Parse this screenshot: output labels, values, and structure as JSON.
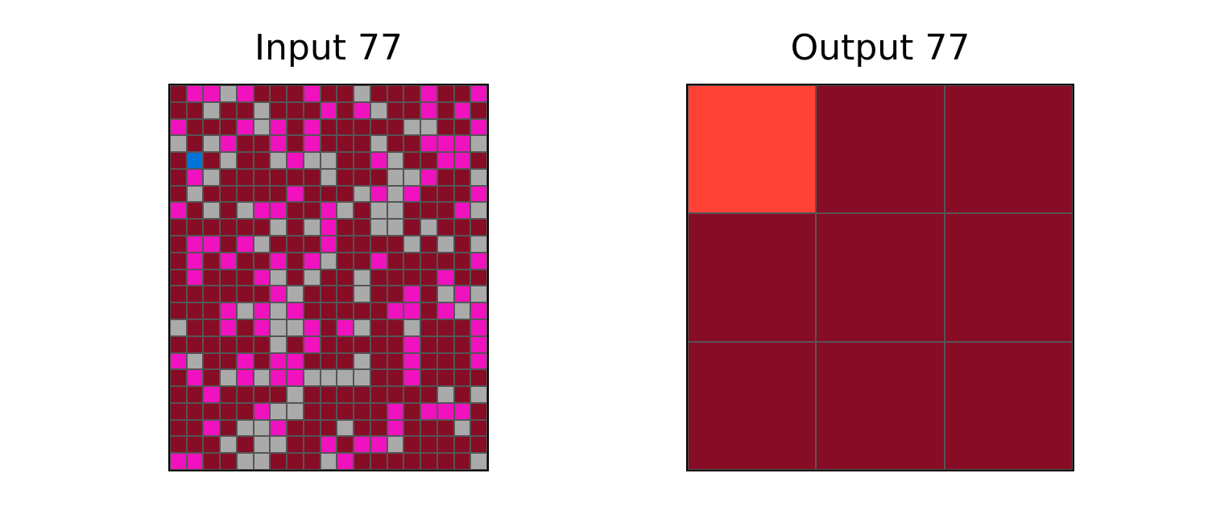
{
  "palette": {
    "0": "#000000",
    "1": "#0074d9",
    "2": "#ff4136",
    "3": "#2ecc40",
    "4": "#ffdc00",
    "5": "#aaaaaa",
    "6": "#f012be",
    "7": "#ff851b",
    "8": "#7fdbff",
    "9": "#870c25"
  },
  "input": {
    "title": "Input 77",
    "rows": 23,
    "cols": 19,
    "grid": [
      [
        9,
        6,
        6,
        5,
        6,
        9,
        9,
        9,
        6,
        9,
        9,
        5,
        9,
        9,
        9,
        6,
        9,
        9,
        6
      ],
      [
        9,
        9,
        5,
        9,
        9,
        5,
        9,
        9,
        9,
        6,
        9,
        6,
        5,
        9,
        9,
        6,
        9,
        6,
        9
      ],
      [
        6,
        9,
        9,
        9,
        6,
        5,
        6,
        9,
        6,
        9,
        9,
        9,
        9,
        9,
        5,
        5,
        9,
        9,
        6
      ],
      [
        5,
        9,
        5,
        6,
        9,
        9,
        6,
        9,
        6,
        9,
        9,
        9,
        5,
        9,
        9,
        6,
        6,
        6,
        5
      ],
      [
        9,
        1,
        9,
        5,
        9,
        9,
        5,
        6,
        5,
        5,
        9,
        9,
        6,
        5,
        9,
        9,
        6,
        6,
        9
      ],
      [
        9,
        6,
        5,
        9,
        9,
        9,
        9,
        9,
        9,
        5,
        9,
        9,
        9,
        5,
        5,
        6,
        9,
        9,
        5
      ],
      [
        9,
        5,
        9,
        9,
        9,
        9,
        9,
        6,
        9,
        9,
        9,
        5,
        6,
        5,
        6,
        9,
        9,
        9,
        6
      ],
      [
        6,
        9,
        5,
        9,
        5,
        6,
        6,
        9,
        9,
        6,
        5,
        9,
        5,
        5,
        9,
        9,
        9,
        6,
        5
      ],
      [
        9,
        9,
        9,
        9,
        9,
        9,
        5,
        9,
        5,
        6,
        9,
        9,
        5,
        5,
        9,
        5,
        9,
        9,
        9
      ],
      [
        9,
        6,
        6,
        9,
        6,
        5,
        9,
        9,
        9,
        6,
        9,
        9,
        9,
        9,
        5,
        9,
        5,
        9,
        5
      ],
      [
        9,
        6,
        9,
        6,
        9,
        9,
        6,
        9,
        6,
        5,
        9,
        9,
        6,
        9,
        9,
        9,
        9,
        9,
        6
      ],
      [
        9,
        6,
        9,
        9,
        9,
        6,
        5,
        9,
        5,
        9,
        9,
        5,
        9,
        9,
        9,
        9,
        6,
        9,
        9
      ],
      [
        9,
        9,
        9,
        9,
        9,
        9,
        6,
        5,
        9,
        9,
        9,
        5,
        9,
        9,
        6,
        9,
        5,
        6,
        5
      ],
      [
        9,
        9,
        9,
        6,
        5,
        6,
        5,
        6,
        9,
        9,
        9,
        9,
        9,
        6,
        6,
        9,
        6,
        5,
        6
      ],
      [
        5,
        9,
        9,
        6,
        9,
        6,
        5,
        5,
        6,
        9,
        6,
        5,
        9,
        9,
        5,
        9,
        9,
        9,
        6
      ],
      [
        9,
        9,
        9,
        9,
        9,
        9,
        5,
        9,
        6,
        9,
        9,
        9,
        9,
        9,
        6,
        9,
        9,
        9,
        6
      ],
      [
        6,
        5,
        9,
        9,
        6,
        9,
        6,
        6,
        9,
        9,
        9,
        5,
        9,
        9,
        6,
        9,
        9,
        9,
        6
      ],
      [
        9,
        6,
        9,
        5,
        6,
        5,
        6,
        6,
        5,
        5,
        5,
        5,
        9,
        9,
        6,
        9,
        9,
        9,
        9
      ],
      [
        9,
        9,
        6,
        9,
        9,
        9,
        9,
        5,
        9,
        9,
        9,
        9,
        9,
        9,
        9,
        9,
        5,
        9,
        5
      ],
      [
        9,
        9,
        9,
        9,
        9,
        6,
        5,
        5,
        9,
        9,
        9,
        9,
        9,
        6,
        9,
        6,
        6,
        6,
        9
      ],
      [
        9,
        9,
        6,
        9,
        5,
        5,
        6,
        9,
        9,
        9,
        5,
        9,
        9,
        6,
        9,
        9,
        9,
        5,
        9
      ],
      [
        9,
        9,
        9,
        5,
        9,
        5,
        5,
        9,
        9,
        6,
        9,
        6,
        6,
        5,
        9,
        9,
        9,
        9,
        9
      ],
      [
        6,
        6,
        9,
        9,
        5,
        5,
        9,
        9,
        9,
        5,
        6,
        9,
        9,
        9,
        9,
        9,
        9,
        9,
        5
      ]
    ]
  },
  "output": {
    "title": "Output 77",
    "rows": 3,
    "cols": 3,
    "grid": [
      [
        2,
        9,
        9
      ],
      [
        9,
        9,
        9
      ],
      [
        9,
        9,
        9
      ]
    ]
  }
}
